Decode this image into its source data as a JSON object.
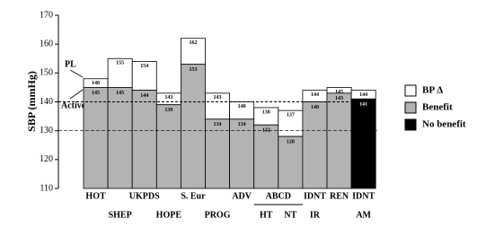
{
  "chart_data": {
    "type": "bar",
    "y_label": "SBP (mmHg)",
    "ylim": [
      110,
      170
    ],
    "yticks": [
      110,
      120,
      130,
      140,
      150,
      160,
      170
    ],
    "categories": [
      "HOT",
      "SHEP",
      "UKPDS",
      "HOPE",
      "S. Eur",
      "PROG",
      "ADV",
      "HT",
      "NT",
      "IR",
      "REN",
      "AM"
    ],
    "groups": [
      {
        "label": "ABCD",
        "members": [
          7,
          8
        ]
      },
      {
        "label": "IDNT",
        "members": [
          9
        ]
      },
      {
        "label": "IDNT",
        "members": [
          11
        ]
      }
    ],
    "series": [
      {
        "name": "BP Δ",
        "color": "#ffffff",
        "values": [
          148,
          155,
          154,
          143,
          162,
          143,
          140,
          138,
          137,
          144,
          145,
          144
        ]
      },
      {
        "name": "Benefit",
        "color": "#b3b3b3",
        "values": [
          145,
          145,
          144,
          139,
          153,
          134,
          134,
          132,
          128,
          140,
          143,
          null
        ]
      },
      {
        "name": "No benefit",
        "color": "#000000",
        "values": [
          null,
          null,
          null,
          null,
          null,
          null,
          null,
          null,
          null,
          null,
          null,
          141
        ]
      }
    ],
    "reference_lines": [
      140,
      130
    ],
    "annotations": [
      "PL",
      "Active"
    ]
  }
}
